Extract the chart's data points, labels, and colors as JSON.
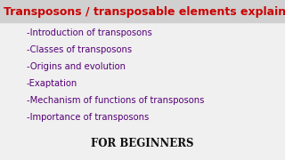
{
  "background_color": "#f0f0f0",
  "title_bg_color": "#d0d0d0",
  "title": "Transposons / transposable elements explained",
  "title_color": "#cc0000",
  "title_fontsize": 9.0,
  "title_fontstyle": "bold",
  "bullet_items": [
    "-Introduction of transposons",
    "-Classes of transposons",
    "-Origins and evolution",
    "-Exaptation",
    "-Mechanism of functions of transposons",
    "-Importance of transposons"
  ],
  "bullet_color": "#550077",
  "bullet_fontsize": 7.2,
  "footer": "FOR BEGINNERS",
  "footer_color": "#111111",
  "footer_fontsize": 8.5,
  "footer_fontstyle": "bold"
}
